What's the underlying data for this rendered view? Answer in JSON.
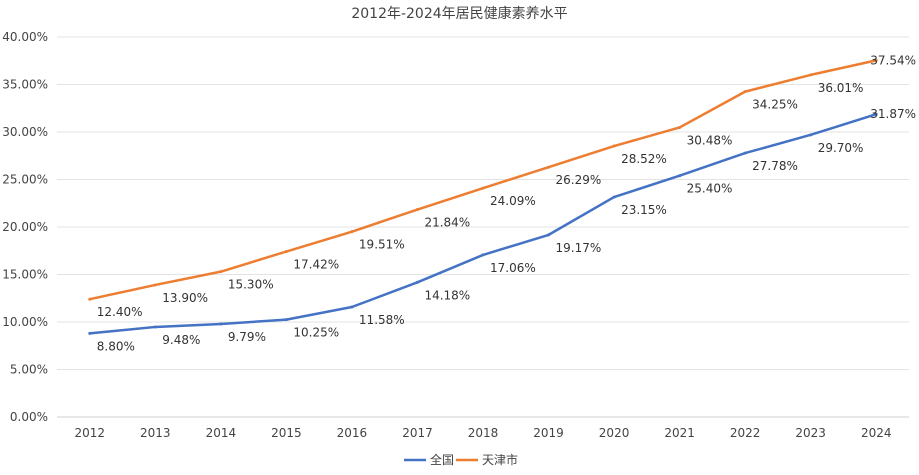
{
  "chart_data": {
    "type": "line",
    "title": "2012年-2024年居民健康素养水平",
    "xlabel": "",
    "ylabel": "",
    "categories": [
      "2012",
      "2013",
      "2014",
      "2015",
      "2016",
      "2017",
      "2018",
      "2019",
      "2020",
      "2021",
      "2022",
      "2023",
      "2024"
    ],
    "ylim": [
      0,
      40
    ],
    "y_ticks": [
      "0.00%",
      "5.00%",
      "10.00%",
      "15.00%",
      "20.00%",
      "25.00%",
      "30.00%",
      "35.00%",
      "40.00%"
    ],
    "y_tick_values": [
      0,
      5,
      10,
      15,
      20,
      25,
      30,
      35,
      40
    ],
    "grid": true,
    "legend_position": "bottom",
    "series": [
      {
        "name": "全国",
        "color": "#4472C4",
        "values": [
          8.8,
          9.48,
          9.79,
          10.25,
          11.58,
          14.18,
          17.06,
          19.17,
          23.15,
          25.4,
          27.78,
          29.7,
          31.87
        ],
        "labels": [
          "8.80%",
          "9.48%",
          "9.79%",
          "10.25%",
          "11.58%",
          "14.18%",
          "17.06%",
          "19.17%",
          "23.15%",
          "25.40%",
          "27.78%",
          "29.70%",
          "31.87%"
        ]
      },
      {
        "name": "天津市",
        "color": "#ED7D31",
        "values": [
          12.4,
          13.9,
          15.3,
          17.42,
          19.51,
          21.84,
          24.09,
          26.29,
          28.52,
          30.48,
          34.25,
          36.01,
          37.54
        ],
        "labels": [
          "12.40%",
          "13.90%",
          "15.30%",
          "17.42%",
          "19.51%",
          "21.84%",
          "24.09%",
          "26.29%",
          "28.52%",
          "30.48%",
          "34.25%",
          "36.01%",
          "37.54%"
        ]
      }
    ]
  }
}
